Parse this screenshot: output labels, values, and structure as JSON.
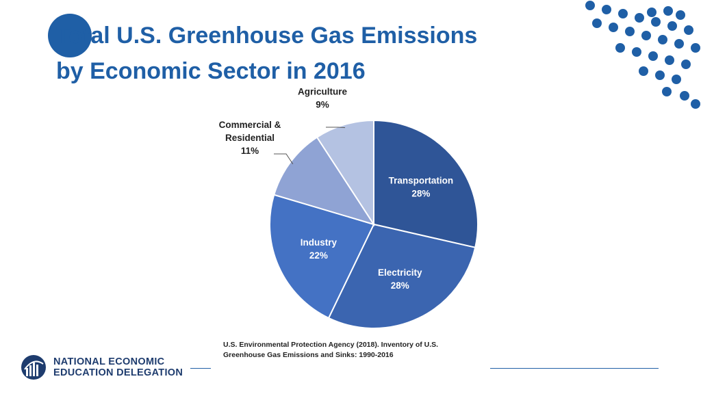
{
  "slide": {
    "title_line1": "Total U.S. Greenhouse Gas Emissions",
    "title_line2": "by Economic Sector in 2016",
    "source_line1": "U.S. Environmental Protection Agency (2018). Inventory of U.S.",
    "source_line2": "Greenhouse Gas Emissions and Sinks: 1990-2016",
    "logo_line1": "NATIONAL ECONOMIC",
    "logo_line2": "EDUCATION DELEGATION"
  },
  "colors": {
    "accent": "#1f5fa6",
    "logo": "#1e3c6e"
  },
  "chart_data": {
    "type": "pie",
    "title": "",
    "slices": [
      {
        "label_lines": [
          "Transportation"
        ],
        "value": 28,
        "value_label": "28%",
        "color": "#2f5597",
        "label_placement": "inside"
      },
      {
        "label_lines": [
          "Electricity"
        ],
        "value": 28,
        "value_label": "28%",
        "color": "#3b65b0",
        "label_placement": "inside"
      },
      {
        "label_lines": [
          "Industry"
        ],
        "value": 22,
        "value_label": "22%",
        "color": "#4472c4",
        "label_placement": "inside"
      },
      {
        "label_lines": [
          "Commercial &",
          "Residential"
        ],
        "value": 11,
        "value_label": "11%",
        "color": "#8fa3d4",
        "label_placement": "outside"
      },
      {
        "label_lines": [
          "Agriculture"
        ],
        "value": 9,
        "value_label": "9%",
        "color": "#b4c2e2",
        "label_placement": "outside"
      }
    ],
    "start": "12 o'clock",
    "direction": "clockwise",
    "legend": "none"
  }
}
